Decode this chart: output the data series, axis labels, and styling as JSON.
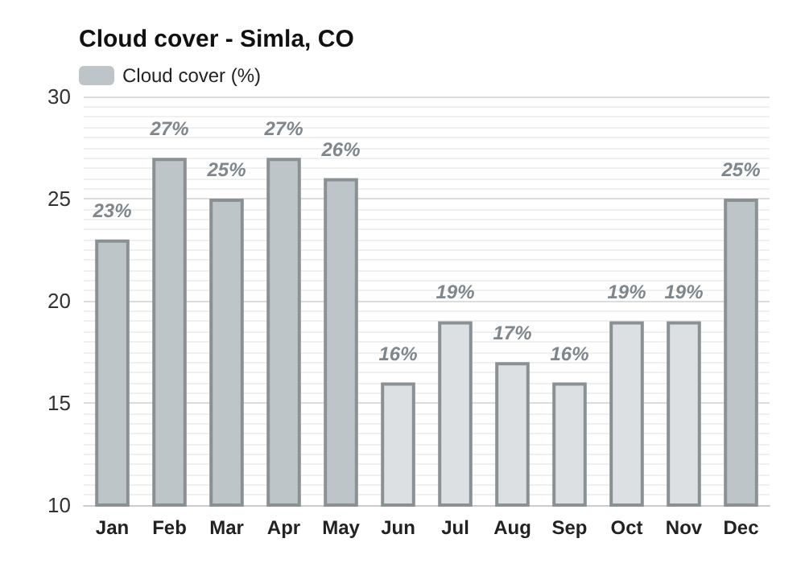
{
  "chart_data": {
    "type": "bar",
    "title": "Cloud cover - Simla, CO",
    "categories": [
      "Jan",
      "Feb",
      "Mar",
      "Apr",
      "May",
      "Jun",
      "Jul",
      "Aug",
      "Sep",
      "Oct",
      "Nov",
      "Dec"
    ],
    "series": [
      {
        "name": "Cloud cover (%)",
        "color": "#bec5c9",
        "colors": [
          "#bec5c9",
          "#bec5c9",
          "#bec5c9",
          "#bec5c9",
          "#bec5c9",
          "#dce0e2",
          "#dce0e2",
          "#dce0e2",
          "#dce0e2",
          "#dce0e2",
          "#dce0e2",
          "#bec5c9"
        ],
        "values": [
          23,
          27,
          25,
          27,
          26,
          16,
          19,
          17,
          16,
          19,
          19,
          25
        ],
        "value_labels": [
          "23%",
          "27%",
          "25%",
          "27%",
          "26%",
          "16%",
          "19%",
          "17%",
          "16%",
          "19%",
          "19%",
          "25%"
        ]
      }
    ],
    "ylim": [
      10,
      30
    ],
    "yticks": [
      10,
      15,
      20,
      25,
      30
    ],
    "grid": "y",
    "legend": "top left"
  }
}
